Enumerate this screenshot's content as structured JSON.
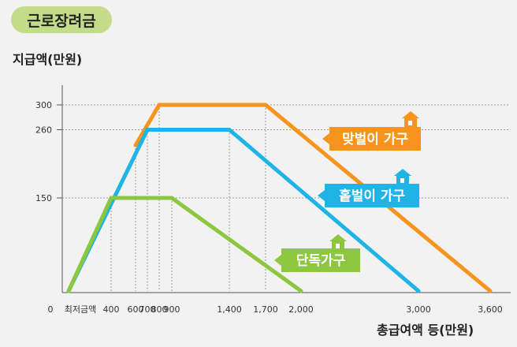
{
  "header": {
    "title": "근로장려금"
  },
  "chart_data": {
    "type": "line",
    "ylabel": "지급액(만원)",
    "xlabel": "총급여액 등(만원)",
    "x_ticks": [
      "0",
      "최저금액",
      "400",
      "600",
      "700",
      "800",
      "900",
      "1,400",
      "1,700",
      "2,000",
      "3,000",
      "3,600"
    ],
    "y_ticks": [
      "300",
      "260",
      "150"
    ],
    "xlim": [
      -300,
      3650
    ],
    "ylim": [
      0,
      320
    ],
    "grid": "dotted reference lines",
    "series": [
      {
        "name": "맞벌이 가구",
        "color": "#f7941d",
        "points": [
          [
            600,
            235
          ],
          [
            800,
            300
          ],
          [
            1700,
            300
          ],
          [
            3600,
            0
          ]
        ]
      },
      {
        "name": "홑벌이 가구",
        "color": "#1fb3e6",
        "points": [
          [
            0,
            0
          ],
          [
            700,
            260
          ],
          [
            1400,
            260
          ],
          [
            3000,
            0
          ]
        ]
      },
      {
        "name": "단독가구",
        "color": "#8dc63f",
        "points": [
          [
            0,
            0
          ],
          [
            400,
            150
          ],
          [
            900,
            150
          ],
          [
            2000,
            0
          ]
        ]
      }
    ]
  }
}
